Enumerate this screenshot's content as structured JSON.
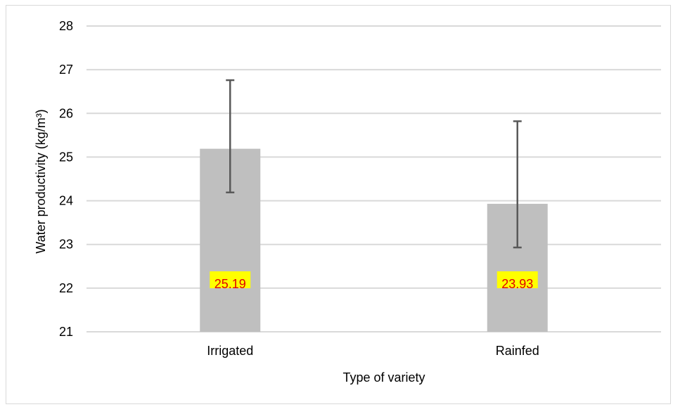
{
  "chart_data": {
    "type": "bar",
    "categories": [
      "Irrigated",
      "Rainfed"
    ],
    "values": [
      25.19,
      23.93
    ],
    "error_bars": [
      {
        "lower": 24.19,
        "upper": 26.76
      },
      {
        "lower": 22.93,
        "upper": 25.82
      }
    ],
    "data_labels": [
      "25.19",
      "23.93"
    ],
    "xlabel": "Type of variety",
    "ylabel": "Water productivity (kg/m³)",
    "ylim": [
      21,
      28
    ],
    "yticks": [
      21,
      22,
      23,
      24,
      25,
      26,
      27,
      28
    ],
    "grid": true,
    "legend": "none",
    "colors": {
      "bar": "#bfbfbf",
      "grid": "#d9d9d9",
      "error_bar": "#595959",
      "label_text": "#e00000",
      "label_highlight": "#ffff00"
    }
  }
}
